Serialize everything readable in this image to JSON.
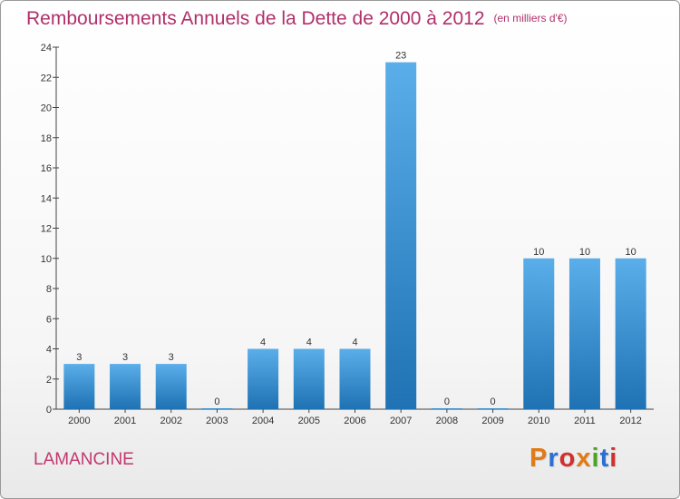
{
  "title": "Remboursements Annuels de la Dette de 2000 à 2012",
  "subtitle": "(en milliers d'€)",
  "commune": "LAMANCINE",
  "brand": "Proxiti",
  "colors": {
    "title": "#b0306a",
    "bar_top": "#5aaee9",
    "bar_bottom": "#1f72b3",
    "brand_letters": [
      "#e07b17",
      "#2a6fd1",
      "#d0312d",
      "#e07b17",
      "#4aa51f",
      "#2a6fd1",
      "#d0312d"
    ]
  },
  "chart_data": {
    "type": "bar",
    "categories": [
      "2000",
      "2001",
      "2002",
      "2003",
      "2004",
      "2005",
      "2006",
      "2007",
      "2008",
      "2009",
      "2010",
      "2011",
      "2012"
    ],
    "values": [
      3,
      3,
      3,
      0,
      4,
      4,
      4,
      23,
      0,
      0,
      10,
      10,
      10
    ],
    "data_labels": [
      "3",
      "3",
      "3",
      "0",
      "4",
      "4",
      "4",
      "23",
      "0",
      "0",
      "10",
      "10",
      "10"
    ],
    "title": "Remboursements Annuels de la Dette de 2000 à 2012",
    "xlabel": "",
    "ylabel": "",
    "ylim": [
      0,
      24
    ],
    "yticks": [
      0,
      2,
      4,
      6,
      8,
      10,
      12,
      14,
      16,
      18,
      20,
      22,
      24
    ],
    "grid": false,
    "legend": "none"
  }
}
